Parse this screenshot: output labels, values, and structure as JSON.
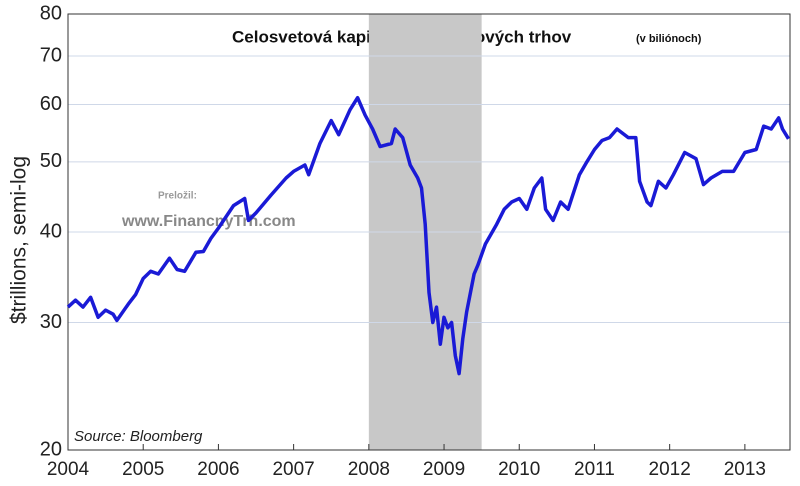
{
  "chart_data": {
    "type": "line",
    "title": "Celosvetová kapitalizácia akciových trhov",
    "subtitle": "(v biliónoch)",
    "y_label": "$trillions, semi-log",
    "source": "Source: Bloomberg",
    "watermark_label": "Preložil:",
    "watermark_url": "www.FinancnyTrh.com",
    "log_scale": true,
    "grid": true,
    "shade": [
      2008,
      2009.5
    ],
    "shade_color": "#c8c8c8",
    "xlim": [
      2004,
      2013.6
    ],
    "xticks": [
      2004,
      2005,
      2006,
      2007,
      2008,
      2009,
      2010,
      2011,
      2012,
      2013
    ],
    "ylim": [
      20,
      80
    ],
    "yticks": [
      20,
      30,
      40,
      50,
      60,
      70,
      80
    ],
    "color": "#1a1ad6",
    "x": [
      2004.0,
      2004.1,
      2004.2,
      2004.3,
      2004.4,
      2004.5,
      2004.6,
      2004.65,
      2004.8,
      2004.9,
      2005.0,
      2005.1,
      2005.2,
      2005.3,
      2005.35,
      2005.45,
      2005.55,
      2005.7,
      2005.8,
      2005.9,
      2006.0,
      2006.2,
      2006.35,
      2006.4,
      2006.5,
      2006.7,
      2006.9,
      2007.0,
      2007.15,
      2007.2,
      2007.35,
      2007.5,
      2007.6,
      2007.75,
      2007.85,
      2007.95,
      2008.05,
      2008.15,
      2008.3,
      2008.35,
      2008.45,
      2008.55,
      2008.65,
      2008.7,
      2008.75,
      2008.8,
      2008.85,
      2008.9,
      2008.95,
      2009.0,
      2009.05,
      2009.1,
      2009.15,
      2009.2,
      2009.25,
      2009.3,
      2009.4,
      2009.45,
      2009.55,
      2009.7,
      2009.8,
      2009.9,
      2010.0,
      2010.1,
      2010.2,
      2010.3,
      2010.35,
      2010.45,
      2010.55,
      2010.65,
      2010.8,
      2010.9,
      2011.0,
      2011.1,
      2011.2,
      2011.3,
      2011.45,
      2011.55,
      2011.6,
      2011.7,
      2011.75,
      2011.85,
      2011.95,
      2012.05,
      2012.2,
      2012.35,
      2012.45,
      2012.55,
      2012.7,
      2012.85,
      2013.0,
      2013.15,
      2013.25,
      2013.35,
      2013.45,
      2013.5,
      2013.58
    ],
    "values": [
      31.5,
      32.2,
      31.5,
      32.5,
      30.5,
      31.2,
      30.8,
      30.2,
      31.8,
      32.8,
      34.5,
      35.3,
      35,
      36.2,
      36.8,
      35.5,
      35.3,
      37.5,
      37.6,
      39.2,
      40.5,
      43.5,
      44.5,
      41.5,
      42.5,
      45,
      47.5,
      48.5,
      49.5,
      48,
      53,
      57,
      54.5,
      59,
      61.3,
      58,
      55.5,
      52.5,
      53,
      55.5,
      54,
      49.5,
      47.5,
      46,
      41,
      33,
      30,
      31.5,
      28,
      30.5,
      29.5,
      30,
      27,
      25.5,
      28.5,
      31,
      35,
      36,
      38.5,
      41,
      43,
      44,
      44.5,
      43,
      46,
      47.5,
      43,
      41.5,
      44,
      43,
      48,
      50,
      52,
      53.5,
      54,
      55.5,
      54,
      54,
      47,
      44,
      43.5,
      47,
      46,
      48,
      51.5,
      50.5,
      46.5,
      47.5,
      48.5,
      48.5,
      51.5,
      52,
      56,
      55.5,
      57.5,
      55.5,
      53.8
    ]
  }
}
